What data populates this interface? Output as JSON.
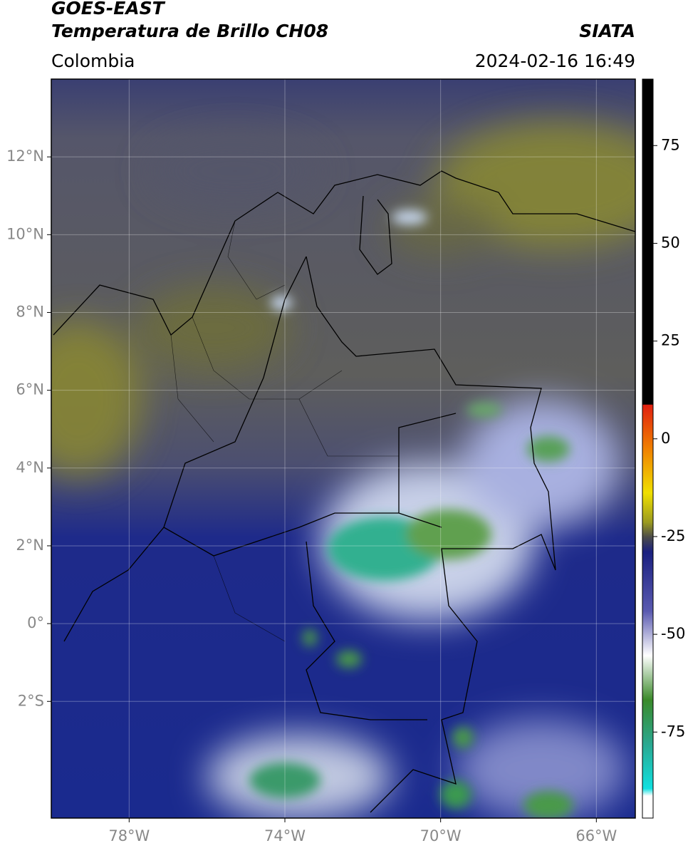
{
  "header": {
    "source": "GOES-EAST",
    "product": "Temperatura de Brillo CH08",
    "region": "Colombia",
    "agency": "SIATA",
    "datetime": "2024-02-16 16:49"
  },
  "map": {
    "xlim": [
      -80,
      -65
    ],
    "ylim": [
      -5,
      14
    ],
    "xticks": [
      {
        "value": -78,
        "label": "78°W"
      },
      {
        "value": -74,
        "label": "74°W"
      },
      {
        "value": -70,
        "label": "70°W"
      },
      {
        "value": -66,
        "label": "66°W"
      }
    ],
    "yticks": [
      {
        "value": 12,
        "label": "12°N"
      },
      {
        "value": 10,
        "label": "10°N"
      },
      {
        "value": 8,
        "label": "8°N"
      },
      {
        "value": 6,
        "label": "6°N"
      },
      {
        "value": 4,
        "label": "4°N"
      },
      {
        "value": 2,
        "label": "2°N"
      },
      {
        "value": 0,
        "label": "0°"
      },
      {
        "value": -2,
        "label": "2°S"
      }
    ],
    "grid": true
  },
  "colorbar": {
    "lim": [
      -97,
      92
    ],
    "ticks": [
      75,
      50,
      25,
      0,
      -25,
      -50,
      -75
    ]
  }
}
